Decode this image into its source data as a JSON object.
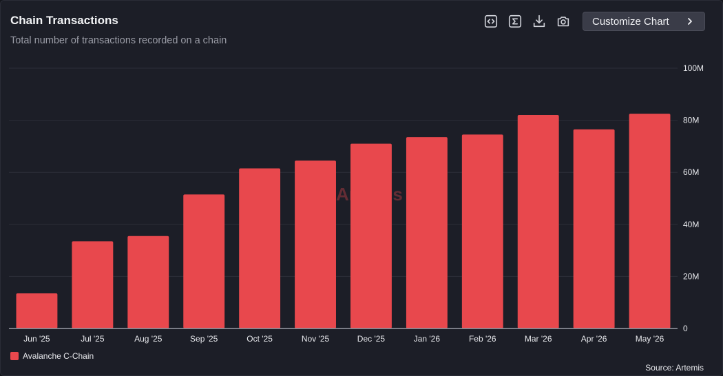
{
  "header": {
    "title": "Chain Transactions",
    "subtitle": "Total number of transactions recorded on a chain"
  },
  "toolbar": {
    "icons": [
      "embed-code-icon",
      "sigma-icon",
      "download-icon",
      "camera-icon"
    ],
    "customize_label": "Customize Chart"
  },
  "watermark": {
    "text": "Artemis"
  },
  "footer": {
    "source": "Source: Artemis"
  },
  "colors": {
    "bar": "#e8484d",
    "background": "#1c1e27",
    "grid": "#2c2e38",
    "axis": "#9a9ca6"
  },
  "chart_data": {
    "type": "bar",
    "categories": [
      "Jun '25",
      "Jul '25",
      "Aug '25",
      "Sep '25",
      "Oct '25",
      "Nov '25",
      "Dec '25",
      "Jan '26",
      "Feb '26",
      "Mar '26",
      "Apr '26",
      "May '26"
    ],
    "series": [
      {
        "name": "Avalanche C-Chain",
        "color": "#e8484d",
        "values": [
          13.5,
          33.5,
          35.5,
          51.5,
          61.5,
          64.5,
          71,
          73.5,
          74.5,
          82,
          76.5,
          82.5
        ]
      }
    ],
    "unit": "M",
    "ylim": [
      0,
      100
    ],
    "yticks": [
      0,
      20,
      40,
      60,
      80,
      100
    ],
    "ytick_labels": [
      "0",
      "20M",
      "40M",
      "60M",
      "80M",
      "100M"
    ],
    "y_axis_position": "right",
    "grid": true,
    "legend_position": "bottom-left"
  }
}
